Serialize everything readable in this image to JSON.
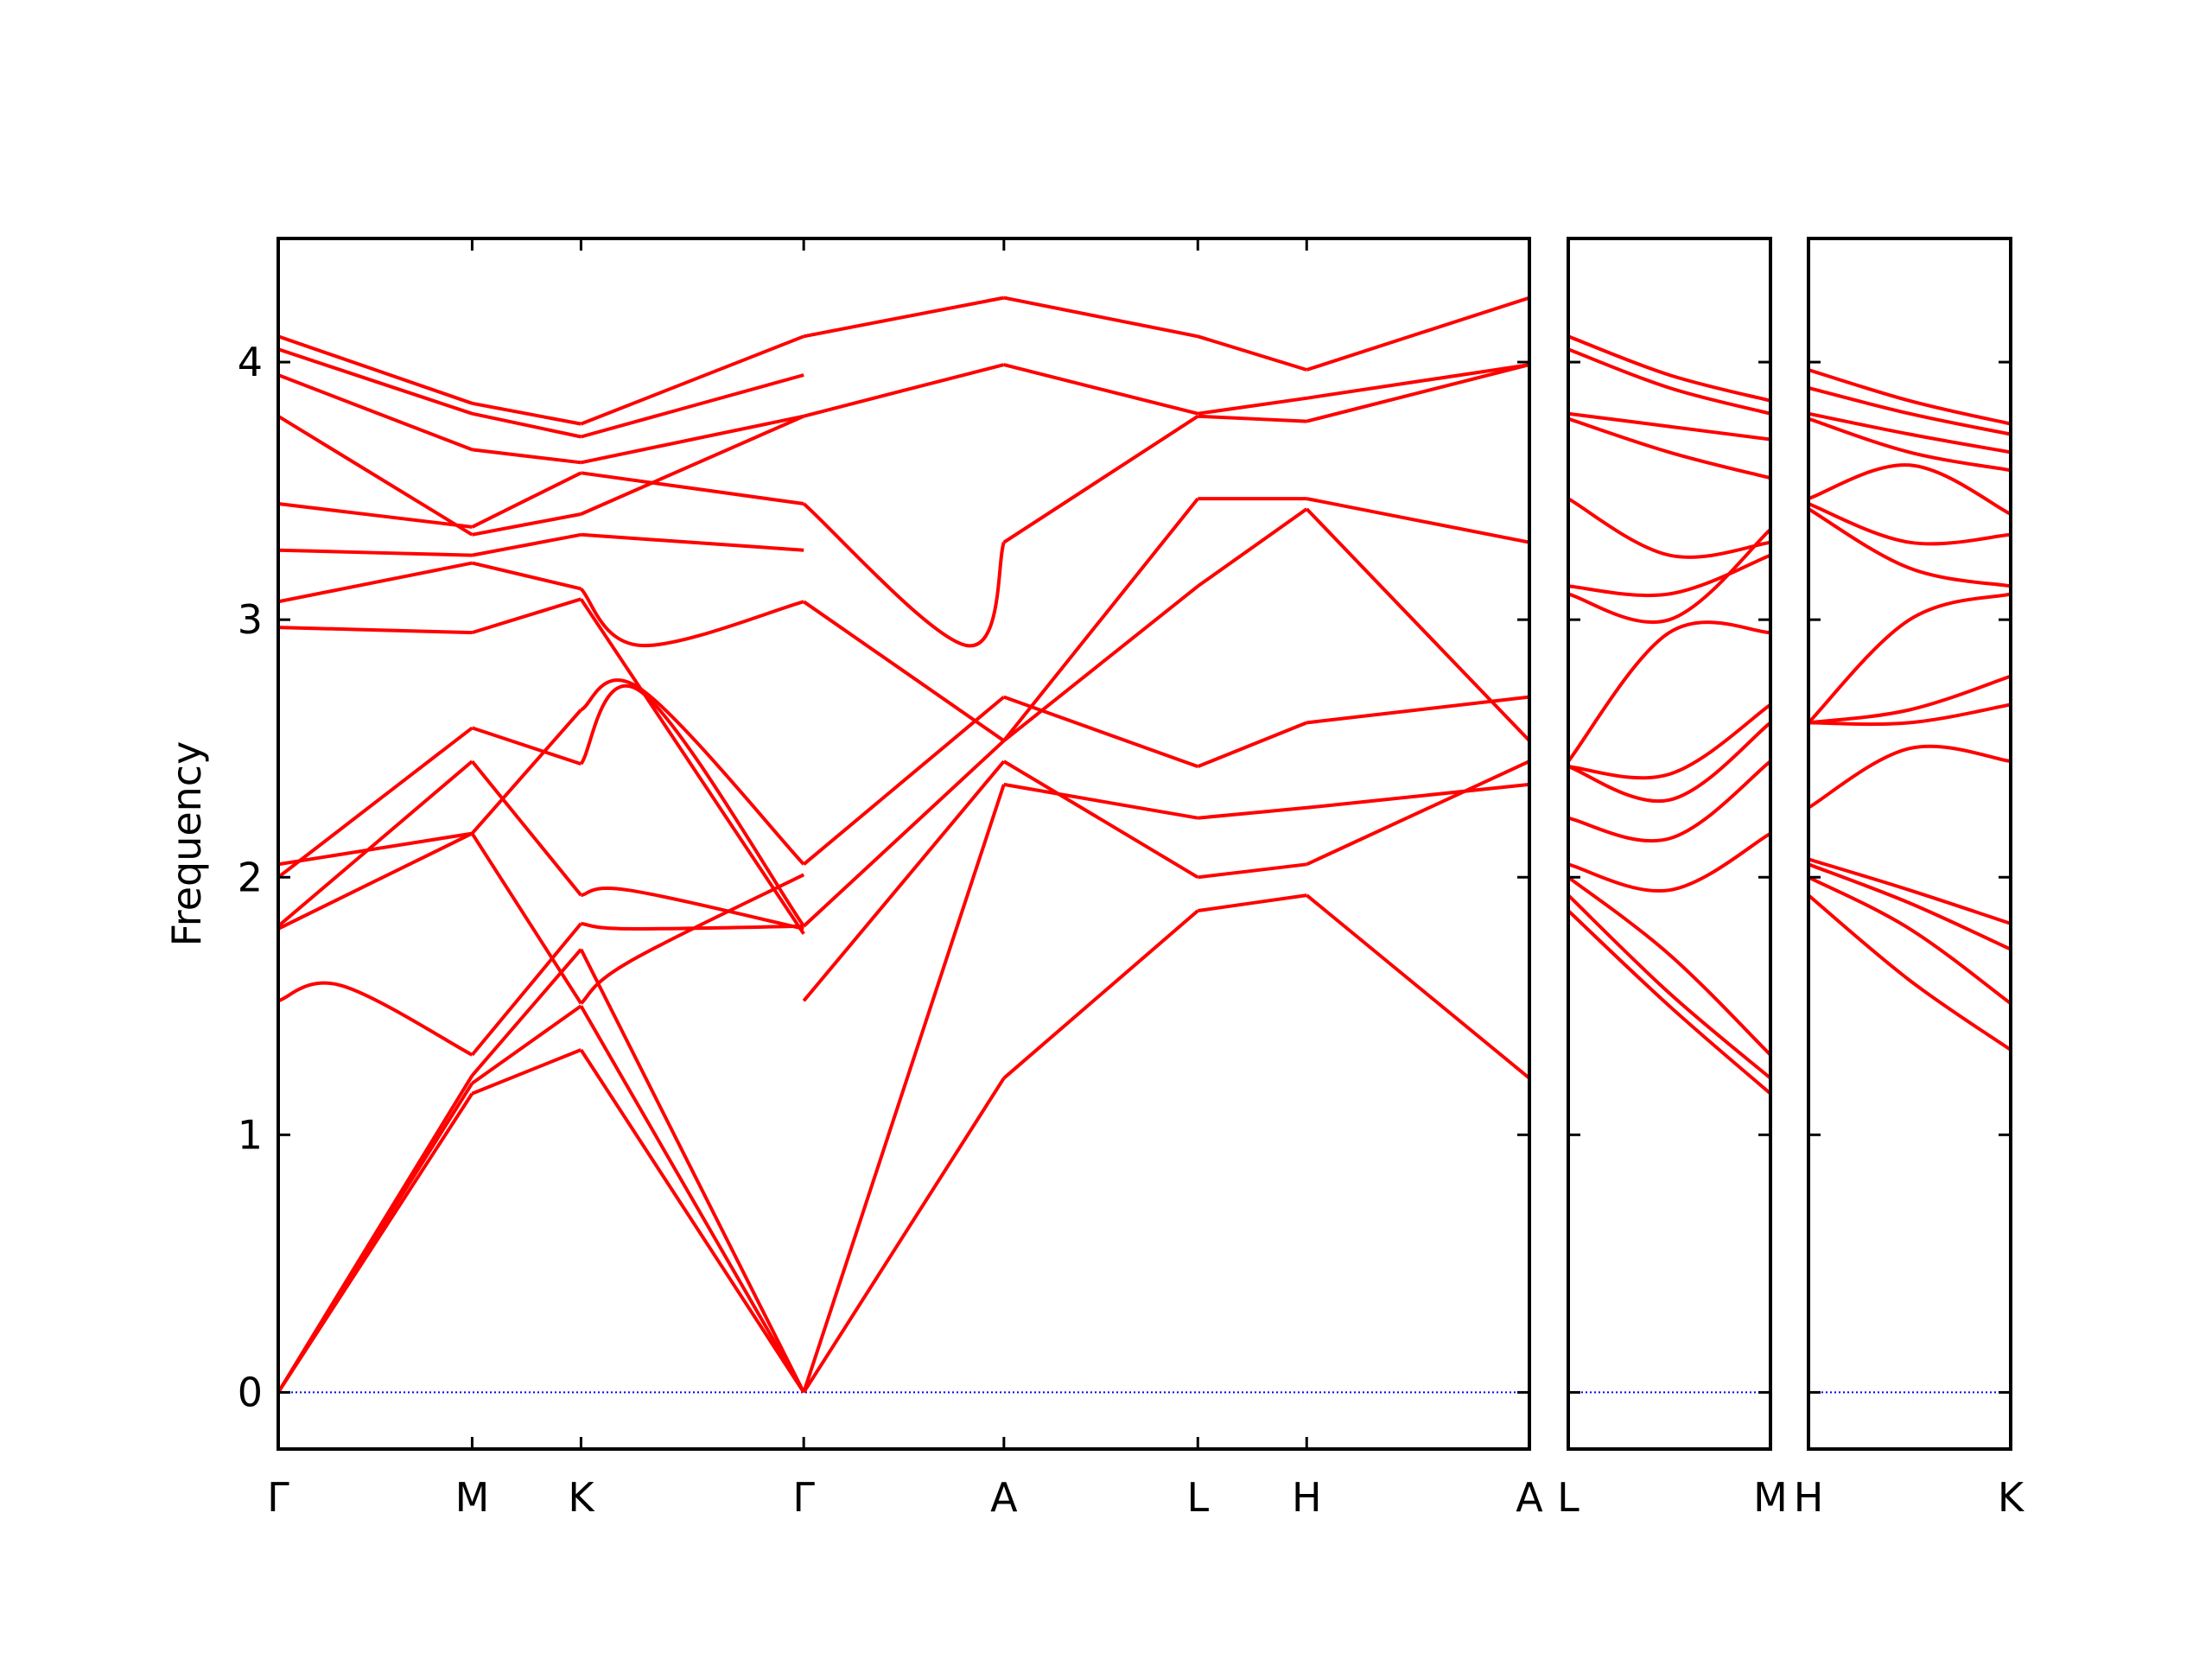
{
  "chart_data": {
    "type": "line",
    "ylabel": "Frequency",
    "ylim": [
      -0.22,
      4.48
    ],
    "y_ticks": [
      0,
      1,
      2,
      3,
      4
    ],
    "y_tick_labels": [
      "0",
      "1",
      "2",
      "3",
      "4"
    ],
    "grid": false,
    "legend": "none",
    "band_color": "#ff0000",
    "zero_line_color": "#0000ff",
    "panels": [
      {
        "x_ticks": [
          0,
          0.155,
          0.242,
          0.42,
          0.58,
          0.735,
          0.822,
          1.0
        ],
        "x_tick_labels": [
          "Γ",
          "M",
          "K",
          "Γ",
          "A",
          "L",
          "H",
          "A"
        ],
        "bands": [
          [
            [
              0,
              0
            ],
            [
              0.155,
              1.16
            ],
            [
              0.242,
              1.33
            ],
            [
              0.42,
              0
            ]
          ],
          [
            [
              0,
              0
            ],
            [
              0.155,
              1.2
            ],
            [
              0.242,
              1.5
            ],
            [
              0.42,
              0
            ]
          ],
          [
            [
              0,
              0
            ],
            [
              0.155,
              1.23
            ],
            [
              0.242,
              1.72
            ],
            [
              0.42,
              0
            ]
          ],
          [
            [
              0,
              1.52
            ],
            [
              0.05,
              1.58
            ],
            [
              0.155,
              1.31
            ],
            [
              0.242,
              1.82
            ],
            [
              0.28,
              1.8
            ],
            [
              0.42,
              1.81
            ]
          ],
          [
            [
              0,
              1.8
            ],
            [
              0.155,
              2.17
            ],
            [
              0.242,
              1.51
            ],
            [
              0.28,
              1.67
            ],
            [
              0.42,
              2.01
            ]
          ],
          [
            [
              0,
              1.81
            ],
            [
              0.155,
              2.45
            ],
            [
              0.242,
              1.93
            ],
            [
              0.28,
              1.95
            ],
            [
              0.42,
              1.8
            ]
          ],
          [
            [
              0,
              2.0
            ],
            [
              0.155,
              2.58
            ],
            [
              0.242,
              2.44
            ],
            [
              0.29,
              2.72
            ],
            [
              0.42,
              1.81
            ]
          ],
          [
            [
              0,
              2.05
            ],
            [
              0.155,
              2.17
            ],
            [
              0.242,
              2.65
            ],
            [
              0.29,
              2.73
            ],
            [
              0.42,
              2.05
            ]
          ],
          [
            [
              0,
              2.97
            ],
            [
              0.155,
              2.95
            ],
            [
              0.242,
              3.08
            ],
            [
              0.42,
              1.78
            ]
          ],
          [
            [
              0,
              3.07
            ],
            [
              0.155,
              3.22
            ],
            [
              0.242,
              3.12
            ],
            [
              0.29,
              2.9
            ],
            [
              0.42,
              3.07
            ]
          ],
          [
            [
              0,
              3.27
            ],
            [
              0.155,
              3.25
            ],
            [
              0.242,
              3.33
            ],
            [
              0.42,
              3.27
            ]
          ],
          [
            [
              0,
              3.45
            ],
            [
              0.155,
              3.36
            ],
            [
              0.242,
              3.57
            ],
            [
              0.42,
              3.45
            ]
          ],
          [
            [
              0,
              3.79
            ],
            [
              0.155,
              3.33
            ],
            [
              0.242,
              3.41
            ],
            [
              0.42,
              3.79
            ]
          ],
          [
            [
              0,
              3.95
            ],
            [
              0.155,
              3.66
            ],
            [
              0.242,
              3.61
            ],
            [
              0.42,
              3.79
            ]
          ],
          [
            [
              0,
              4.05
            ],
            [
              0.155,
              3.8
            ],
            [
              0.242,
              3.71
            ],
            [
              0.42,
              3.95
            ]
          ],
          [
            [
              0,
              4.1
            ],
            [
              0.155,
              3.84
            ],
            [
              0.242,
              3.76
            ],
            [
              0.42,
              4.1
            ]
          ],
          [
            [
              0.42,
              0
            ],
            [
              0.58,
              1.22
            ],
            [
              0.735,
              1.87
            ],
            [
              0.822,
              1.93
            ],
            [
              1.0,
              1.22
            ]
          ],
          [
            [
              0.42,
              0
            ],
            [
              0.58,
              2.36
            ],
            [
              0.735,
              2.23
            ],
            [
              0.822,
              2.27
            ],
            [
              1.0,
              2.36
            ]
          ],
          [
            [
              0.42,
              1.52
            ],
            [
              0.58,
              2.45
            ],
            [
              0.735,
              2.0
            ],
            [
              0.822,
              2.05
            ],
            [
              1.0,
              2.45
            ]
          ],
          [
            [
              0.42,
              1.81
            ],
            [
              0.58,
              2.53
            ],
            [
              0.735,
              3.13
            ],
            [
              0.822,
              3.43
            ],
            [
              1.0,
              2.53
            ]
          ],
          [
            [
              0.42,
              2.05
            ],
            [
              0.58,
              2.7
            ],
            [
              0.735,
              2.43
            ],
            [
              0.822,
              2.6
            ],
            [
              1.0,
              2.7
            ]
          ],
          [
            [
              0.42,
              3.07
            ],
            [
              0.58,
              2.53
            ],
            [
              0.735,
              3.47
            ],
            [
              0.822,
              3.47
            ],
            [
              1.0,
              3.3
            ]
          ],
          [
            [
              0.42,
              3.45
            ],
            [
              0.55,
              2.9
            ],
            [
              0.58,
              3.3
            ],
            [
              0.735,
              3.79
            ],
            [
              0.822,
              3.77
            ],
            [
              1.0,
              3.99
            ]
          ],
          [
            [
              0.42,
              3.79
            ],
            [
              0.58,
              3.99
            ],
            [
              0.735,
              3.8
            ],
            [
              0.822,
              3.86
            ],
            [
              1.0,
              3.99
            ]
          ],
          [
            [
              0.42,
              4.1
            ],
            [
              0.58,
              4.25
            ],
            [
              0.735,
              4.1
            ],
            [
              0.822,
              3.97
            ],
            [
              1.0,
              4.25
            ]
          ]
        ]
      },
      {
        "x_ticks": [
          0,
          1
        ],
        "x_tick_labels": [
          "L",
          "M"
        ],
        "bands": [
          [
            [
              0,
              1.87
            ],
            [
              0.5,
              1.5
            ],
            [
              1,
              1.16
            ]
          ],
          [
            [
              0,
              1.93
            ],
            [
              0.5,
              1.55
            ],
            [
              1,
              1.22
            ]
          ],
          [
            [
              0,
              2.0
            ],
            [
              0.5,
              1.7
            ],
            [
              1,
              1.31
            ]
          ],
          [
            [
              0,
              2.05
            ],
            [
              0.5,
              1.95
            ],
            [
              1,
              2.17
            ]
          ],
          [
            [
              0,
              2.23
            ],
            [
              0.5,
              2.15
            ],
            [
              1,
              2.45
            ]
          ],
          [
            [
              0,
              2.43
            ],
            [
              0.5,
              2.3
            ],
            [
              1,
              2.6
            ]
          ],
          [
            [
              0,
              2.43
            ],
            [
              0.5,
              2.4
            ],
            [
              1,
              2.67
            ]
          ],
          [
            [
              0,
              2.45
            ],
            [
              0.5,
              2.95
            ],
            [
              1,
              2.95
            ]
          ],
          [
            [
              0,
              3.1
            ],
            [
              0.5,
              3.0
            ],
            [
              1,
              3.35
            ]
          ],
          [
            [
              0,
              3.13
            ],
            [
              0.5,
              3.1
            ],
            [
              1,
              3.25
            ]
          ],
          [
            [
              0,
              3.47
            ],
            [
              0.5,
              3.25
            ],
            [
              1,
              3.3
            ]
          ],
          [
            [
              0,
              3.78
            ],
            [
              0.5,
              3.65
            ],
            [
              1,
              3.55
            ]
          ],
          [
            [
              0,
              3.8
            ],
            [
              0.5,
              3.75
            ],
            [
              1,
              3.7
            ]
          ],
          [
            [
              0,
              4.05
            ],
            [
              0.5,
              3.9
            ],
            [
              1,
              3.8
            ]
          ],
          [
            [
              0,
              4.1
            ],
            [
              0.5,
              3.95
            ],
            [
              1,
              3.85
            ]
          ]
        ]
      },
      {
        "x_ticks": [
          0,
          1
        ],
        "x_tick_labels": [
          "H",
          "K"
        ],
        "bands": [
          [
            [
              0,
              1.93
            ],
            [
              0.5,
              1.6
            ],
            [
              1,
              1.33
            ]
          ],
          [
            [
              0,
              2.0
            ],
            [
              0.5,
              1.8
            ],
            [
              1,
              1.51
            ]
          ],
          [
            [
              0,
              2.05
            ],
            [
              0.5,
              1.9
            ],
            [
              1,
              1.72
            ]
          ],
          [
            [
              0,
              2.07
            ],
            [
              0.5,
              1.95
            ],
            [
              1,
              1.82
            ]
          ],
          [
            [
              0,
              2.27
            ],
            [
              0.5,
              2.5
            ],
            [
              1,
              2.45
            ]
          ],
          [
            [
              0,
              2.6
            ],
            [
              0.5,
              2.6
            ],
            [
              1,
              2.67
            ]
          ],
          [
            [
              0,
              2.6
            ],
            [
              0.5,
              2.65
            ],
            [
              1,
              2.78
            ]
          ],
          [
            [
              0,
              2.6
            ],
            [
              0.5,
              3.0
            ],
            [
              1,
              3.1
            ]
          ],
          [
            [
              0,
              3.43
            ],
            [
              0.5,
              3.2
            ],
            [
              1,
              3.13
            ]
          ],
          [
            [
              0,
              3.45
            ],
            [
              0.5,
              3.3
            ],
            [
              1,
              3.33
            ]
          ],
          [
            [
              0,
              3.47
            ],
            [
              0.5,
              3.6
            ],
            [
              1,
              3.41
            ]
          ],
          [
            [
              0,
              3.78
            ],
            [
              0.5,
              3.65
            ],
            [
              1,
              3.58
            ]
          ],
          [
            [
              0,
              3.8
            ],
            [
              0.5,
              3.72
            ],
            [
              1,
              3.65
            ]
          ],
          [
            [
              0,
              3.9
            ],
            [
              0.5,
              3.8
            ],
            [
              1,
              3.72
            ]
          ],
          [
            [
              0,
              3.97
            ],
            [
              0.5,
              3.85
            ],
            [
              1,
              3.76
            ]
          ]
        ]
      }
    ]
  }
}
